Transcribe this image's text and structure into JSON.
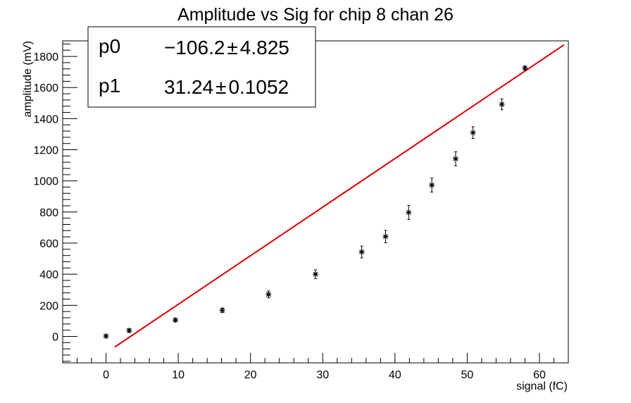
{
  "chart_data": {
    "type": "scatter",
    "title": "Amplitude vs Sig for chip 8 chan 26",
    "xlabel": "signal (fC)",
    "ylabel": "amplitude (mV)",
    "xlim": [
      -6,
      64
    ],
    "ylim": [
      -170,
      1900
    ],
    "x_ticks": [
      0,
      10,
      20,
      30,
      40,
      50,
      60
    ],
    "y_ticks": [
      0,
      200,
      400,
      600,
      800,
      1000,
      1200,
      1400,
      1600,
      1800
    ],
    "grid": false,
    "series": [
      {
        "type": "scatter-errorbar",
        "color": "#000000",
        "points": [
          {
            "x": 0.0,
            "y": 2,
            "err": 8
          },
          {
            "x": 3.2,
            "y": 38,
            "err": 10
          },
          {
            "x": 9.6,
            "y": 105,
            "err": 10
          },
          {
            "x": 16.1,
            "y": 168,
            "err": 14
          },
          {
            "x": 22.5,
            "y": 270,
            "err": 22
          },
          {
            "x": 29.0,
            "y": 400,
            "err": 28
          },
          {
            "x": 35.4,
            "y": 543,
            "err": 38
          },
          {
            "x": 38.7,
            "y": 642,
            "err": 40
          },
          {
            "x": 41.9,
            "y": 797,
            "err": 45
          },
          {
            "x": 45.1,
            "y": 973,
            "err": 45
          },
          {
            "x": 48.4,
            "y": 1142,
            "err": 45
          },
          {
            "x": 50.8,
            "y": 1310,
            "err": 38
          },
          {
            "x": 54.8,
            "y": 1492,
            "err": 35
          },
          {
            "x": 58.0,
            "y": 1725,
            "err": 12
          }
        ]
      },
      {
        "type": "fit-line",
        "color": "#dd0000",
        "p0": -106.2,
        "p1": 31.24,
        "x_range": [
          1.2,
          63.4
        ]
      }
    ],
    "stats_box": {
      "rows": [
        {
          "name": "p0",
          "value": "−106.2",
          "pm": "±",
          "error": "4.825"
        },
        {
          "name": "p1",
          "value": "31.24",
          "pm": "±",
          "error": "0.1052"
        }
      ]
    }
  }
}
